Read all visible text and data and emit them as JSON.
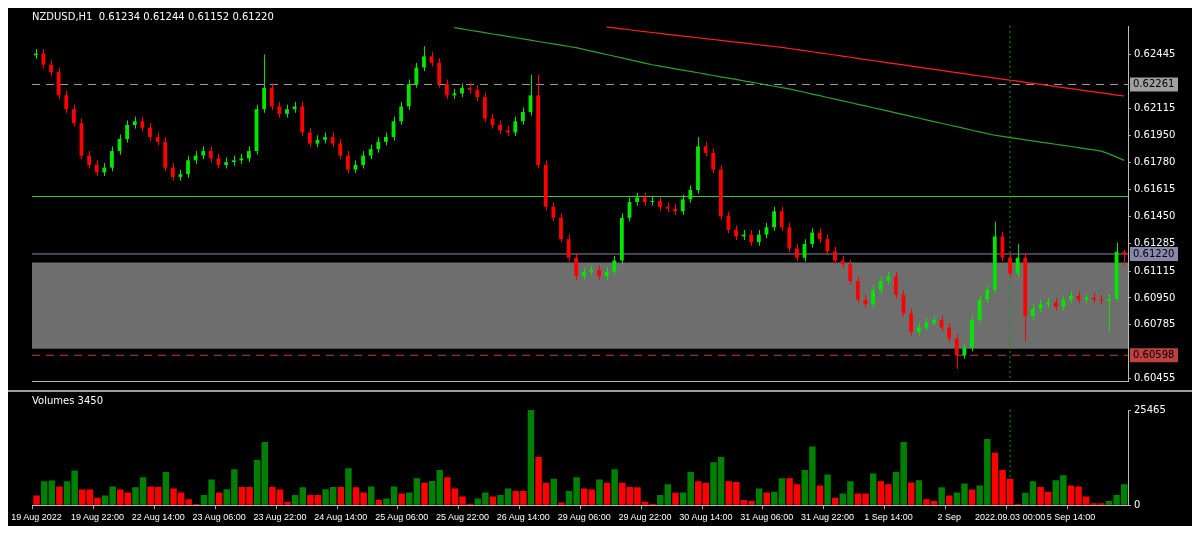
{
  "chart_data": [
    {
      "type": "candlestick",
      "title": "NZDUSD,H1  0.61234 0.61244 0.61152 0.61220",
      "categories": [
        "19 Aug 2022",
        null,
        null,
        null,
        null,
        null,
        null,
        null,
        "19 Aug 22:00",
        null,
        null,
        null,
        null,
        null,
        null,
        null,
        "22 Aug 14:00",
        null,
        null,
        null,
        null,
        null,
        null,
        null,
        "23 Aug 06:00",
        null,
        null,
        null,
        null,
        null,
        null,
        null,
        "23 Aug 22:00",
        null,
        null,
        null,
        null,
        null,
        null,
        null,
        "24 Aug 14:00",
        null,
        null,
        null,
        null,
        null,
        null,
        null,
        "25 Aug 06:00",
        null,
        null,
        null,
        null,
        null,
        null,
        null,
        "25 Aug 22:00",
        null,
        null,
        null,
        null,
        null,
        null,
        null,
        "26 Aug 14:00",
        null,
        null,
        null,
        null,
        null,
        null,
        null,
        "29 Aug 06:00",
        null,
        null,
        null,
        null,
        null,
        null,
        null,
        "29 Aug 22:00",
        null,
        null,
        null,
        null,
        null,
        null,
        null,
        "30 Aug 14:00",
        null,
        null,
        null,
        null,
        null,
        null,
        null,
        "31 Aug 06:00",
        null,
        null,
        null,
        null,
        null,
        null,
        null,
        "31 Aug 22:00",
        null,
        null,
        null,
        null,
        null,
        null,
        null,
        "1 Sep 14:00",
        null,
        null,
        null,
        null,
        null,
        null,
        null,
        "2 Sep",
        null,
        null,
        null,
        null,
        null,
        null,
        null,
        "2022.09.03 00:00",
        null,
        null,
        null,
        null,
        null,
        null,
        null,
        "5 Sep 14:00",
        null,
        null,
        null,
        null,
        null,
        null,
        null
      ],
      "ohlc": [
        [
          0.6244,
          0.62479,
          0.62418,
          0.62451
        ],
        [
          0.62451,
          0.62479,
          0.6236,
          0.62382
        ],
        [
          0.62382,
          0.6241,
          0.62315,
          0.62337
        ],
        [
          0.62337,
          0.62365,
          0.62172,
          0.62194
        ],
        [
          0.62194,
          0.62222,
          0.62087,
          0.62109
        ],
        [
          0.62109,
          0.62137,
          0.62001,
          0.62023
        ],
        [
          0.62023,
          0.62051,
          0.61802,
          0.61824
        ],
        [
          0.61824,
          0.61852,
          0.61745,
          0.61767
        ],
        [
          0.61767,
          0.61795,
          0.61699,
          0.61721
        ],
        [
          0.61721,
          0.61778,
          0.61699,
          0.6175
        ],
        [
          0.6175,
          0.6188,
          0.61728,
          0.61852
        ],
        [
          0.61852,
          0.61954,
          0.6183,
          0.61926
        ],
        [
          0.61926,
          0.6204,
          0.61904,
          0.62012
        ],
        [
          0.62012,
          0.62063,
          0.6199,
          0.62035
        ],
        [
          0.62035,
          0.62063,
          0.61973,
          0.61995
        ],
        [
          0.61995,
          0.62023,
          0.61916,
          0.61938
        ],
        [
          0.61938,
          0.61966,
          0.61887,
          0.61909
        ],
        [
          0.61909,
          0.61937,
          0.61728,
          0.6175
        ],
        [
          0.6175,
          0.61778,
          0.61671,
          0.61693
        ],
        [
          0.61693,
          0.61738,
          0.61671,
          0.6171
        ],
        [
          0.6171,
          0.61823,
          0.61688,
          0.61795
        ],
        [
          0.61795,
          0.61852,
          0.61773,
          0.61824
        ],
        [
          0.61824,
          0.6188,
          0.61802,
          0.61852
        ],
        [
          0.61852,
          0.6188,
          0.61785,
          0.61807
        ],
        [
          0.61807,
          0.61835,
          0.61745,
          0.61767
        ],
        [
          0.61767,
          0.61812,
          0.61745,
          0.61784
        ],
        [
          0.61784,
          0.61823,
          0.61762,
          0.61795
        ],
        [
          0.61795,
          0.61835,
          0.61773,
          0.61807
        ],
        [
          0.61807,
          0.6188,
          0.61785,
          0.61852
        ],
        [
          0.61852,
          0.62137,
          0.6183,
          0.62109
        ],
        [
          0.62109,
          0.62445,
          0.62087,
          0.6224
        ],
        [
          0.6224,
          0.62268,
          0.62104,
          0.62126
        ],
        [
          0.62126,
          0.62154,
          0.62058,
          0.6208
        ],
        [
          0.6208,
          0.62137,
          0.62058,
          0.62109
        ],
        [
          0.62109,
          0.62154,
          0.62087,
          0.62126
        ],
        [
          0.62126,
          0.62154,
          0.61944,
          0.61966
        ],
        [
          0.61966,
          0.61994,
          0.61876,
          0.61898
        ],
        [
          0.61898,
          0.61949,
          0.61876,
          0.61921
        ],
        [
          0.61921,
          0.61966,
          0.61899,
          0.61938
        ],
        [
          0.61938,
          0.61966,
          0.61876,
          0.61898
        ],
        [
          0.61898,
          0.61926,
          0.61802,
          0.61824
        ],
        [
          0.61824,
          0.61852,
          0.61716,
          0.61738
        ],
        [
          0.61738,
          0.61795,
          0.61716,
          0.61767
        ],
        [
          0.61767,
          0.61852,
          0.61745,
          0.61824
        ],
        [
          0.61824,
          0.61892,
          0.61802,
          0.61864
        ],
        [
          0.61864,
          0.61937,
          0.61842,
          0.61909
        ],
        [
          0.61909,
          0.61966,
          0.61887,
          0.61938
        ],
        [
          0.61938,
          0.62063,
          0.61916,
          0.62035
        ],
        [
          0.62035,
          0.62154,
          0.62013,
          0.62126
        ],
        [
          0.62126,
          0.62291,
          0.62104,
          0.62263
        ],
        [
          0.62263,
          0.62393,
          0.62241,
          0.62365
        ],
        [
          0.62365,
          0.62496,
          0.62343,
          0.62434
        ],
        [
          0.62434,
          0.62462,
          0.62372,
          0.62394
        ],
        [
          0.62394,
          0.62422,
          0.62241,
          0.62263
        ],
        [
          0.62263,
          0.62291,
          0.62172,
          0.62194
        ],
        [
          0.62194,
          0.62234,
          0.62172,
          0.62206
        ],
        [
          0.62206,
          0.62268,
          0.62184,
          0.6224
        ],
        [
          0.6224,
          0.62268,
          0.62206,
          0.62228
        ],
        [
          0.62228,
          0.62256,
          0.62161,
          0.62183
        ],
        [
          0.62183,
          0.62211,
          0.6203,
          0.62052
        ],
        [
          0.62052,
          0.6208,
          0.6199,
          0.62012
        ],
        [
          0.62012,
          0.6204,
          0.61956,
          0.61978
        ],
        [
          0.61978,
          0.62006,
          0.61944,
          0.61966
        ],
        [
          0.61966,
          0.62063,
          0.61944,
          0.62035
        ],
        [
          0.62035,
          0.6212,
          0.62013,
          0.62092
        ],
        [
          0.62092,
          0.6232,
          0.6207,
          0.62194
        ],
        [
          0.62194,
          0.6232,
          0.61745,
          0.61767
        ],
        [
          0.61767,
          0.61795,
          0.61488,
          0.6151
        ],
        [
          0.6151,
          0.61538,
          0.6142,
          0.61442
        ],
        [
          0.61442,
          0.6147,
          0.61289,
          0.61311
        ],
        [
          0.61311,
          0.61339,
          0.61175,
          0.61197
        ],
        [
          0.61197,
          0.61225,
          0.61061,
          0.61083
        ],
        [
          0.61083,
          0.61139,
          0.61061,
          0.61111
        ],
        [
          0.61111,
          0.61151,
          0.61089,
          0.61123
        ],
        [
          0.61123,
          0.61151,
          0.61061,
          0.61083
        ],
        [
          0.61083,
          0.61139,
          0.61061,
          0.61111
        ],
        [
          0.61111,
          0.61208,
          0.61089,
          0.6118
        ],
        [
          0.6118,
          0.6147,
          0.61158,
          0.61442
        ],
        [
          0.61442,
          0.61567,
          0.6142,
          0.61539
        ],
        [
          0.61539,
          0.61595,
          0.61517,
          0.61567
        ],
        [
          0.61567,
          0.61595,
          0.61517,
          0.61539
        ],
        [
          0.61539,
          0.61573,
          0.61517,
          0.61545
        ],
        [
          0.61545,
          0.61573,
          0.61488,
          0.6151
        ],
        [
          0.6151,
          0.61538,
          0.61476,
          0.61498
        ],
        [
          0.61498,
          0.61526,
          0.6146,
          0.61482
        ],
        [
          0.61482,
          0.61584,
          0.6146,
          0.61556
        ],
        [
          0.61556,
          0.61641,
          0.61534,
          0.61613
        ],
        [
          0.61613,
          0.61938,
          0.61591,
          0.61881
        ],
        [
          0.61881,
          0.61909,
          0.61819,
          0.61841
        ],
        [
          0.61841,
          0.61869,
          0.61716,
          0.61738
        ],
        [
          0.61738,
          0.61766,
          0.61431,
          0.61453
        ],
        [
          0.61453,
          0.61481,
          0.61346,
          0.61368
        ],
        [
          0.61368,
          0.61396,
          0.61306,
          0.61328
        ],
        [
          0.61328,
          0.61367,
          0.61306,
          0.61339
        ],
        [
          0.61339,
          0.61367,
          0.61271,
          0.61293
        ],
        [
          0.61293,
          0.61367,
          0.61271,
          0.61339
        ],
        [
          0.61339,
          0.61412,
          0.61317,
          0.61384
        ],
        [
          0.61384,
          0.6151,
          0.61362,
          0.61482
        ],
        [
          0.61482,
          0.6151,
          0.61362,
          0.61384
        ],
        [
          0.61384,
          0.61412,
          0.61232,
          0.61254
        ],
        [
          0.61254,
          0.61282,
          0.61175,
          0.61197
        ],
        [
          0.61197,
          0.6131,
          0.61175,
          0.61282
        ],
        [
          0.61282,
          0.61379,
          0.6126,
          0.61351
        ],
        [
          0.61351,
          0.61379,
          0.61289,
          0.61311
        ],
        [
          0.61311,
          0.61339,
          0.61214,
          0.61236
        ],
        [
          0.61236,
          0.61264,
          0.61158,
          0.6118
        ],
        [
          0.6118,
          0.61208,
          0.61135,
          0.61157
        ],
        [
          0.61157,
          0.61185,
          0.61032,
          0.61054
        ],
        [
          0.61054,
          0.61082,
          0.60918,
          0.6094
        ],
        [
          0.6094,
          0.60968,
          0.6089,
          0.60912
        ],
        [
          0.60912,
          0.61025,
          0.6089,
          0.60997
        ],
        [
          0.60997,
          0.61082,
          0.60975,
          0.61054
        ],
        [
          0.61054,
          0.61111,
          0.61032,
          0.61083
        ],
        [
          0.61083,
          0.61111,
          0.60947,
          0.60969
        ],
        [
          0.60969,
          0.60997,
          0.60833,
          0.60855
        ],
        [
          0.60855,
          0.60883,
          0.60719,
          0.60741
        ],
        [
          0.60741,
          0.60797,
          0.60719,
          0.60769
        ],
        [
          0.60769,
          0.60826,
          0.60747,
          0.60798
        ],
        [
          0.60798,
          0.60843,
          0.60776,
          0.60815
        ],
        [
          0.60815,
          0.60843,
          0.60747,
          0.60769
        ],
        [
          0.60769,
          0.60797,
          0.60679,
          0.60701
        ],
        [
          0.60701,
          0.60729,
          0.60515,
          0.60598
        ],
        [
          0.60598,
          0.60672,
          0.60576,
          0.60644
        ],
        [
          0.60644,
          0.60843,
          0.60622,
          0.60815
        ],
        [
          0.60815,
          0.60968,
          0.60793,
          0.6094
        ],
        [
          0.6094,
          0.61029,
          0.60918,
          0.61001
        ],
        [
          0.61001,
          0.61419,
          0.60979,
          0.61328
        ],
        [
          0.61328,
          0.61356,
          0.61175,
          0.61197
        ],
        [
          0.61197,
          0.61225,
          0.61078,
          0.611
        ],
        [
          0.611,
          0.6128,
          0.61078,
          0.61197
        ],
        [
          0.61197,
          0.61225,
          0.60684,
          0.60837
        ],
        [
          0.60837,
          0.60911,
          0.60815,
          0.60883
        ],
        [
          0.60883,
          0.6094,
          0.60861,
          0.60912
        ],
        [
          0.60912,
          0.60951,
          0.6089,
          0.60923
        ],
        [
          0.60923,
          0.60951,
          0.60873,
          0.60895
        ],
        [
          0.60895,
          0.60968,
          0.60873,
          0.6094
        ],
        [
          0.6094,
          0.60991,
          0.60918,
          0.60963
        ],
        [
          0.60963,
          0.60991,
          0.60918,
          0.6094
        ],
        [
          0.6094,
          0.6098,
          0.60918,
          0.60952
        ],
        [
          0.60952,
          0.6098,
          0.60918,
          0.6094
        ],
        [
          0.6094,
          0.60968,
          0.60912,
          0.60934
        ],
        [
          0.60934,
          0.60973,
          0.60741,
          0.60945
        ],
        [
          0.60945,
          0.6129,
          0.60923,
          0.61234
        ],
        [
          0.61234,
          0.61244,
          0.61152,
          0.6122
        ]
      ],
      "colors": [
        "#00e600",
        "#ff0000",
        "#ff0000",
        "#ff0000",
        "#ff0000",
        "#ff0000",
        "#ff0000",
        "#ff0000",
        "#ff0000",
        "#00e600",
        "#00e600",
        "#00e600",
        "#00e600",
        "#00e600",
        "#ff0000",
        "#ff0000",
        "#ff0000",
        "#ff0000",
        "#ff0000",
        "#00e600",
        "#00e600",
        "#00e600",
        "#00e600",
        "#ff0000",
        "#ff0000",
        "#00e600",
        "#00e600",
        "#00e600",
        "#00e600",
        "#00e600",
        "#00e600",
        "#ff0000",
        "#ff0000",
        "#00e600",
        "#00e600",
        "#ff0000",
        "#ff0000",
        "#00e600",
        "#00e600",
        "#ff0000",
        "#ff0000",
        "#ff0000",
        "#00e600",
        "#00e600",
        "#00e600",
        "#00e600",
        "#00e600",
        "#00e600",
        "#00e600",
        "#00e600",
        "#00e600",
        "#00e600",
        "#ff0000",
        "#ff0000",
        "#ff0000",
        "#00e600",
        "#00e600",
        "#ff0000",
        "#ff0000",
        "#ff0000",
        "#ff0000",
        "#ff0000",
        "#ff0000",
        "#00e600",
        "#00e600",
        "#00e600",
        "#ff0000",
        "#ff0000",
        "#ff0000",
        "#ff0000",
        "#ff0000",
        "#ff0000",
        "#00e600",
        "#00e600",
        "#ff0000",
        "#00e600",
        "#00e600",
        "#00e600",
        "#00e600",
        "#00e600",
        "#ff0000",
        "#00e600",
        "#ff0000",
        "#ff0000",
        "#ff0000",
        "#00e600",
        "#00e600",
        "#00e600",
        "#ff0000",
        "#ff0000",
        "#ff0000",
        "#ff0000",
        "#ff0000",
        "#00e600",
        "#ff0000",
        "#00e600",
        "#00e600",
        "#00e600",
        "#ff0000",
        "#ff0000",
        "#ff0000",
        "#00e600",
        "#00e600",
        "#ff0000",
        "#ff0000",
        "#ff0000",
        "#ff0000",
        "#ff0000",
        "#ff0000",
        "#ff0000",
        "#00e600",
        "#00e600",
        "#00e600",
        "#ff0000",
        "#ff0000",
        "#ff0000",
        "#00e600",
        "#00e600",
        "#00e600",
        "#ff0000",
        "#ff0000",
        "#ff0000",
        "#00e600",
        "#00e600",
        "#00e600",
        "#00e600",
        "#00e600",
        "#ff0000",
        "#ff0000",
        "#00e600",
        "#ff0000",
        "#00e600",
        "#00e600",
        "#00e600",
        "#ff0000",
        "#00e600",
        "#00e600",
        "#ff0000",
        "#00e600",
        "#ff0000",
        "#ff0000",
        "#00e600",
        "#00e600",
        "#ff0000"
      ],
      "series": [
        {
          "type": "line",
          "color": "#2ca02c",
          "values": [
            null,
            null,
            null,
            null,
            null,
            null,
            null,
            null,
            null,
            null,
            null,
            null,
            null,
            null,
            null,
            null,
            null,
            null,
            null,
            null,
            null,
            null,
            null,
            null,
            null,
            null,
            null,
            null,
            null,
            null,
            null,
            null,
            null,
            null,
            null,
            null,
            null,
            null,
            null,
            null,
            null,
            null,
            null,
            null,
            null,
            null,
            null,
            null,
            null,
            null,
            null,
            null,
            null,
            null,
            null,
            0.6261,
            0.62602,
            0.62594,
            0.62587,
            0.62579,
            0.62571,
            0.62564,
            0.62556,
            0.62548,
            0.62541,
            0.62533,
            0.62525,
            0.62517,
            0.6251,
            0.62502,
            0.62494,
            0.62487,
            0.62476,
            0.62466,
            0.62455,
            0.62445,
            0.62434,
            0.62424,
            0.62413,
            0.62403,
            0.62392,
            0.62382,
            0.62374,
            0.62366,
            0.62357,
            0.62349,
            0.62341,
            0.62333,
            0.62325,
            0.62316,
            0.62308,
            0.623,
            0.62292,
            0.62283,
            0.62275,
            0.62267,
            0.62259,
            0.6225,
            0.62242,
            0.62234,
            0.62223,
            0.62213,
            0.62202,
            0.62192,
            0.62181,
            0.62171,
            0.6216,
            0.6215,
            0.62139,
            0.62129,
            0.62118,
            0.62108,
            0.62097,
            0.62086,
            0.62076,
            0.62065,
            0.62055,
            0.62044,
            0.62033,
            0.62023,
            0.62012,
            0.62002,
            0.61991,
            0.6198,
            0.6197,
            0.61959,
            0.61949,
            0.61942,
            0.61935,
            0.61928,
            0.61921,
            0.61914,
            0.61907,
            0.61901,
            0.61894,
            0.61887,
            0.6188,
            0.61873,
            0.61866,
            0.61859,
            0.61852,
            0.61835,
            0.61815,
            0.61795
          ]
        },
        {
          "type": "line",
          "color": "#ff2020",
          "values": [
            null,
            null,
            null,
            null,
            null,
            null,
            null,
            null,
            null,
            null,
            null,
            null,
            null,
            null,
            null,
            null,
            null,
            null,
            null,
            null,
            null,
            null,
            null,
            null,
            null,
            null,
            null,
            null,
            null,
            null,
            null,
            null,
            null,
            null,
            null,
            null,
            null,
            null,
            null,
            null,
            null,
            null,
            null,
            null,
            null,
            null,
            null,
            null,
            null,
            null,
            null,
            null,
            null,
            null,
            null,
            null,
            null,
            null,
            null,
            null,
            null,
            null,
            null,
            null,
            null,
            null,
            null,
            null,
            null,
            null,
            null,
            null,
            null,
            null,
            null,
            0.62613,
            0.62608,
            0.62602,
            0.62597,
            0.62591,
            0.62586,
            0.6258,
            0.62575,
            0.62569,
            0.62564,
            0.62558,
            0.62553,
            0.62548,
            0.62542,
            0.62537,
            0.62532,
            0.62526,
            0.62521,
            0.62516,
            0.6251,
            0.62505,
            0.625,
            0.62494,
            0.62489,
            0.62482,
            0.62475,
            0.62469,
            0.62462,
            0.62455,
            0.62448,
            0.62442,
            0.62435,
            0.62428,
            0.62421,
            0.62414,
            0.62408,
            0.62401,
            0.62394,
            0.62387,
            0.62381,
            0.62374,
            0.62367,
            0.6236,
            0.62354,
            0.62347,
            0.6234,
            0.62334,
            0.62327,
            0.6232,
            0.62313,
            0.62307,
            0.623,
            0.62294,
            0.62287,
            0.62281,
            0.62274,
            0.62268,
            0.62261,
            0.62255,
            0.62248,
            0.62242,
            0.62235,
            0.62229,
            0.62222,
            0.62216,
            0.62209,
            0.62203,
            0.62196,
            0.6219
          ]
        }
      ],
      "ylim": [
        0.6044,
        0.6262
      ],
      "yticks": [
        0.62445,
        0.62115,
        {
          "value": 0.6195,
          "label": "0.61950"
        },
        {
          "value": 0.6178,
          "label": "0.61780"
        },
        0.61615,
        {
          "value": 0.6145,
          "label": "0.61450"
        },
        0.61285,
        0.61115,
        {
          "value": 0.6095,
          "label": "0.60950"
        },
        0.60785,
        0.60455
      ],
      "bands": [
        {
          "axis": "y",
          "from": 0.60638,
          "to": 0.61168,
          "color": "#6e6e6e"
        }
      ],
      "ref_lines": [
        {
          "axis": "y",
          "value": 0.62261,
          "label": "0.62261",
          "color": "#a0a0a0",
          "line_style": "dashed"
        },
        {
          "axis": "y",
          "value": 0.61573,
          "color": "#32cd32",
          "line_style": "solid"
        },
        {
          "axis": "y",
          "value": 0.6122,
          "label": "0.61220",
          "color": "#8888aa",
          "line_style": "solid"
        },
        {
          "axis": "y",
          "value": 0.60598,
          "label": "0.60598",
          "color": "#c04040",
          "line_style": "dashed"
        },
        {
          "axis": "x",
          "value": "2022.09.03 00:00",
          "color": "#00a000",
          "line_style": "dotted"
        }
      ],
      "grid": false,
      "legend": false,
      "tick_labels": "y"
    },
    {
      "type": "bar",
      "title": "Volumes 3450",
      "categories": [
        "19 Aug 2022",
        null,
        null,
        null,
        null,
        null,
        null,
        null,
        "19 Aug 22:00",
        null,
        null,
        null,
        null,
        null,
        null,
        null,
        "22 Aug 14:00",
        null,
        null,
        null,
        null,
        null,
        null,
        null,
        "23 Aug 06:00",
        null,
        null,
        null,
        null,
        null,
        null,
        null,
        "23 Aug 22:00",
        null,
        null,
        null,
        null,
        null,
        null,
        null,
        "24 Aug 14:00",
        null,
        null,
        null,
        null,
        null,
        null,
        null,
        "25 Aug 06:00",
        null,
        null,
        null,
        null,
        null,
        null,
        null,
        "25 Aug 22:00",
        null,
        null,
        null,
        null,
        null,
        null,
        null,
        "26 Aug 14:00",
        null,
        null,
        null,
        null,
        null,
        null,
        null,
        "29 Aug 06:00",
        null,
        null,
        null,
        null,
        null,
        null,
        null,
        "29 Aug 22:00",
        null,
        null,
        null,
        null,
        null,
        null,
        null,
        "30 Aug 14:00",
        null,
        null,
        null,
        null,
        null,
        null,
        null,
        "31 Aug 06:00",
        null,
        null,
        null,
        null,
        null,
        null,
        null,
        "31 Aug 22:00",
        null,
        null,
        null,
        null,
        null,
        null,
        null,
        "1 Sep 14:00",
        null,
        null,
        null,
        null,
        null,
        null,
        null,
        "2 Sep",
        null,
        null,
        null,
        null,
        null,
        null,
        null,
        "2022.09.03 00:00",
        null,
        null,
        null,
        null,
        null,
        null,
        null,
        "5 Sep 14:00",
        null,
        null,
        null,
        null,
        null,
        null,
        null
      ],
      "values": [
        2600,
        6400,
        6600,
        5000,
        6400,
        9300,
        4200,
        4200,
        2000,
        2600,
        5000,
        4200,
        3400,
        4800,
        7500,
        5000,
        4900,
        8900,
        4500,
        3400,
        1600,
        300,
        2700,
        6900,
        3400,
        4300,
        9600,
        4900,
        4900,
        12100,
        16900,
        4900,
        4200,
        900,
        2700,
        4800,
        2700,
        2700,
        4300,
        4900,
        4900,
        9900,
        4800,
        3400,
        5000,
        1400,
        1800,
        5000,
        3100,
        3400,
        7200,
        6000,
        6500,
        9400,
        7500,
        4500,
        2300,
        400,
        1800,
        3400,
        2300,
        2700,
        4500,
        3800,
        3800,
        25465,
        12900,
        6000,
        7100,
        700,
        3800,
        7500,
        4500,
        4200,
        6900,
        6000,
        9600,
        6000,
        4900,
        4800,
        900,
        400,
        2700,
        5600,
        3300,
        3400,
        8900,
        6400,
        6000,
        11500,
        12900,
        6400,
        6200,
        1400,
        1100,
        4500,
        3400,
        3600,
        7200,
        7200,
        5600,
        9400,
        15700,
        5300,
        8200,
        2000,
        3100,
        6400,
        3100,
        3100,
        8500,
        6400,
        5600,
        8900,
        16900,
        6100,
        6700,
        1600,
        1100,
        4800,
        2600,
        3400,
        5800,
        4200,
        5300,
        17700,
        14000,
        9400,
        7100,
        400,
        3300,
        6400,
        4900,
        3600,
        6700,
        8000,
        5300,
        5000,
        2300,
        500,
        500,
        1100,
        2700,
        5600
      ],
      "colors": [
        "#ff0000",
        "#008000",
        "#008000",
        "#ff0000",
        "#008000",
        "#008000",
        "#ff0000",
        "#ff0000",
        "#ff0000",
        "#008000",
        "#008000",
        "#ff0000",
        "#ff0000",
        "#008000",
        "#008000",
        "#ff0000",
        "#ff0000",
        "#008000",
        "#ff0000",
        "#ff0000",
        "#ff0000",
        "#ff0000",
        "#008000",
        "#008000",
        "#ff0000",
        "#008000",
        "#008000",
        "#ff0000",
        "#ff0000",
        "#008000",
        "#008000",
        "#ff0000",
        "#ff0000",
        "#ff0000",
        "#008000",
        "#008000",
        "#ff0000",
        "#ff0000",
        "#008000",
        "#008000",
        "#ff0000",
        "#008000",
        "#ff0000",
        "#ff0000",
        "#008000",
        "#ff0000",
        "#008000",
        "#008000",
        "#ff0000",
        "#008000",
        "#008000",
        "#ff0000",
        "#008000",
        "#008000",
        "#ff0000",
        "#ff0000",
        "#ff0000",
        "#ff0000",
        "#008000",
        "#008000",
        "#ff0000",
        "#008000",
        "#008000",
        "#ff0000",
        "#ff0000",
        "#008000",
        "#ff0000",
        "#ff0000",
        "#008000",
        "#ff0000",
        "#008000",
        "#008000",
        "#ff0000",
        "#ff0000",
        "#008000",
        "#ff0000",
        "#008000",
        "#ff0000",
        "#ff0000",
        "#ff0000",
        "#ff0000",
        "#ff0000",
        "#008000",
        "#008000",
        "#ff0000",
        "#008000",
        "#008000",
        "#ff0000",
        "#ff0000",
        "#008000",
        "#008000",
        "#ff0000",
        "#ff0000",
        "#ff0000",
        "#ff0000",
        "#008000",
        "#ff0000",
        "#008000",
        "#008000",
        "#ff0000",
        "#ff0000",
        "#008000",
        "#008000",
        "#ff0000",
        "#008000",
        "#ff0000",
        "#008000",
        "#008000",
        "#ff0000",
        "#ff0000",
        "#008000",
        "#ff0000",
        "#ff0000",
        "#008000",
        "#008000",
        "#ff0000",
        "#008000",
        "#ff0000",
        "#ff0000",
        "#008000",
        "#ff0000",
        "#008000",
        "#008000",
        "#ff0000",
        "#008000",
        "#008000",
        "#ff0000",
        "#ff0000",
        "#ff0000",
        "#ff0000",
        "#008000",
        "#008000",
        "#ff0000",
        "#ff0000",
        "#008000",
        "#008000",
        "#ff0000",
        "#ff0000",
        "#ff0000",
        "#ff0000",
        "#ff0000",
        "#008000",
        "#008000",
        "#008000"
      ],
      "ylim": [
        0,
        25465
      ],
      "yticks": [
        0,
        25465
      ],
      "ref_lines": [
        {
          "axis": "x",
          "value": "2022.09.03 00:00",
          "color": "#00a000",
          "line_style": "dotted"
        }
      ],
      "grid": false,
      "legend": false
    }
  ]
}
